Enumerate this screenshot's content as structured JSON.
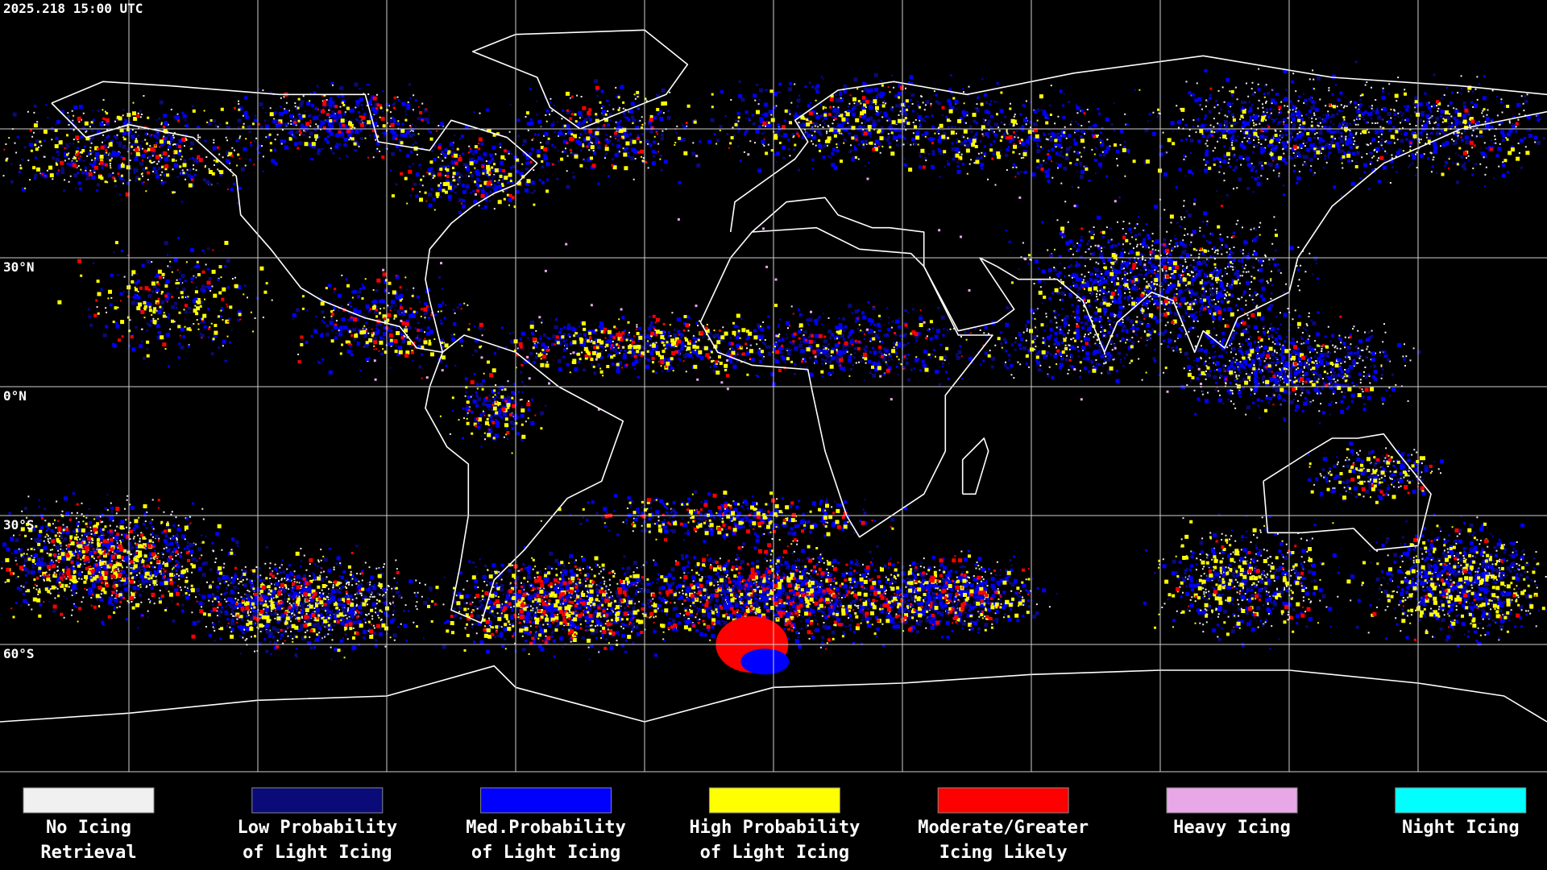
{
  "header": {
    "timestamp": "2025.218 15:00 UTC"
  },
  "map": {
    "latitude_labels": [
      "30°N",
      "0°N",
      "30°S",
      "60°S"
    ]
  },
  "legend": [
    {
      "line1": "No Icing",
      "line2": "Retrieval",
      "color": "#f0f0f0"
    },
    {
      "line1": "Low Probability",
      "line2": "of Light Icing",
      "color": "#0a0a78"
    },
    {
      "line1": "Med.Probability",
      "line2": "of Light Icing",
      "color": "#0000ff"
    },
    {
      "line1": "High Probability",
      "line2": "of Light Icing",
      "color": "#ffff00"
    },
    {
      "line1": "Moderate/Greater",
      "line2": "Icing Likely",
      "color": "#ff0000"
    },
    {
      "line1": "Heavy Icing",
      "line2": "",
      "color": "#e8a8e8"
    },
    {
      "line1": "Night Icing",
      "line2": "",
      "color": "#00ffff"
    }
  ]
}
